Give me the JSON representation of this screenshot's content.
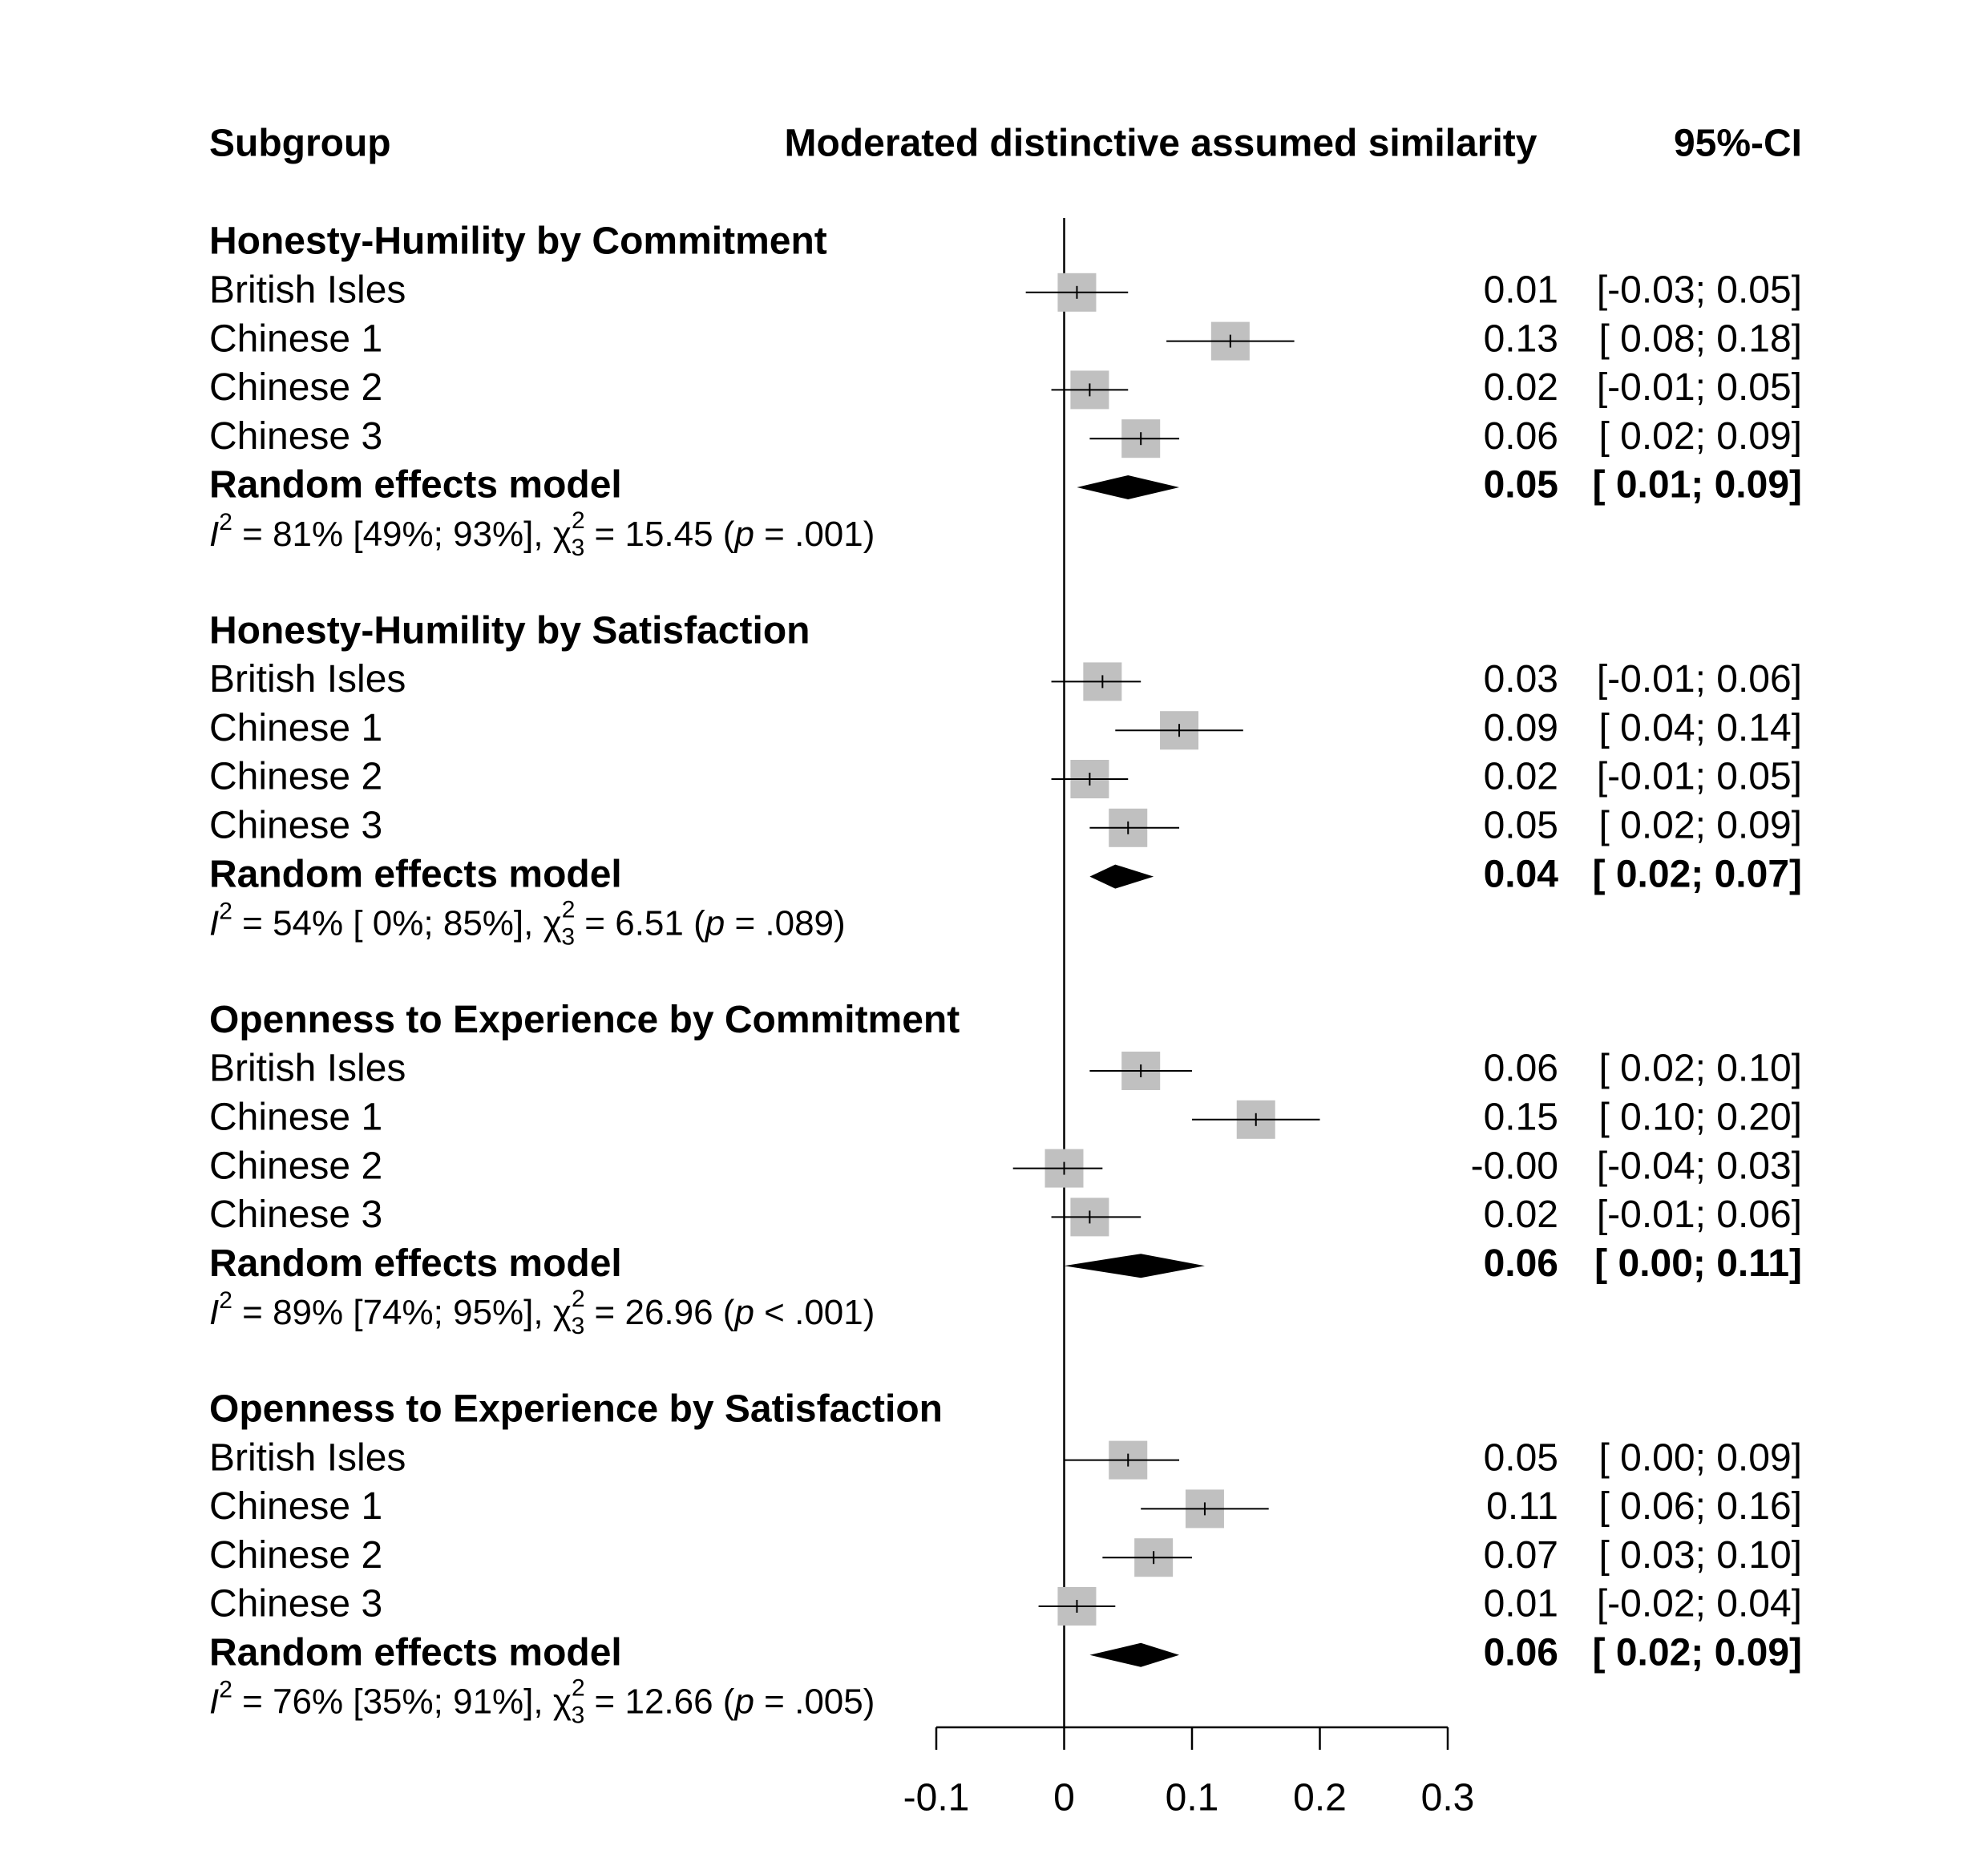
{
  "chart_data": {
    "type": "forest",
    "headers": {
      "subgroup": "Subgroup",
      "effect": "Moderated distinctive assumed similarity",
      "ci": "95%-CI"
    },
    "xlim": [
      -0.1,
      0.3
    ],
    "xticks": [
      -0.1,
      0,
      0.1,
      0.2,
      0.3
    ],
    "zero_line": true,
    "square_color": "#c0c0c0",
    "diamond_color": "#000000",
    "groups": [
      {
        "title": "Honesty-Humility by Commitment",
        "studies": [
          {
            "name": "British Isles",
            "estimate": 0.01,
            "ci": [
              -0.03,
              0.05
            ],
            "ci_label": "[-0.03; 0.05]"
          },
          {
            "name": "Chinese 1",
            "estimate": 0.13,
            "ci": [
              0.08,
              0.18
            ],
            "ci_label": "[ 0.08; 0.18]"
          },
          {
            "name": "Chinese 2",
            "estimate": 0.02,
            "ci": [
              -0.01,
              0.05
            ],
            "ci_label": "[-0.01; 0.05]"
          },
          {
            "name": "Chinese 3",
            "estimate": 0.06,
            "ci": [
              0.02,
              0.09
            ],
            "ci_label": "[ 0.02; 0.09]"
          }
        ],
        "pooled": {
          "name": "Random effects model",
          "estimate": 0.05,
          "ci": [
            0.01,
            0.09
          ],
          "ci_label": "[ 0.01; 0.09]"
        },
        "heterogeneity": {
          "i": "I",
          "i_sup": "2",
          "i_text": " = 81% [49%; 93%], ",
          "chi": "χ",
          "chi_sup": "2",
          "chi_sub": "3",
          "chi_text": " = 15.45 (",
          "p": "p",
          "p_text": " = .001)"
        }
      },
      {
        "title": "Honesty-Humility by Satisfaction",
        "studies": [
          {
            "name": "British Isles",
            "estimate": 0.03,
            "ci": [
              -0.01,
              0.06
            ],
            "ci_label": "[-0.01; 0.06]"
          },
          {
            "name": "Chinese 1",
            "estimate": 0.09,
            "ci": [
              0.04,
              0.14
            ],
            "ci_label": "[ 0.04; 0.14]"
          },
          {
            "name": "Chinese 2",
            "estimate": 0.02,
            "ci": [
              -0.01,
              0.05
            ],
            "ci_label": "[-0.01; 0.05]"
          },
          {
            "name": "Chinese 3",
            "estimate": 0.05,
            "ci": [
              0.02,
              0.09
            ],
            "ci_label": "[ 0.02; 0.09]"
          }
        ],
        "pooled": {
          "name": "Random effects model",
          "estimate": 0.04,
          "ci": [
            0.02,
            0.07
          ],
          "ci_label": "[ 0.02; 0.07]"
        },
        "heterogeneity": {
          "i": "I",
          "i_sup": "2",
          "i_text": " = 54% [ 0%; 85%], ",
          "chi": "χ",
          "chi_sup": "2",
          "chi_sub": "3",
          "chi_text": " = 6.51 (",
          "p": "p",
          "p_text": " = .089)"
        }
      },
      {
        "title": "Openness to Experience by Commitment",
        "studies": [
          {
            "name": "British Isles",
            "estimate": 0.06,
            "ci": [
              0.02,
              0.1
            ],
            "ci_label": "[ 0.02; 0.10]"
          },
          {
            "name": "Chinese 1",
            "estimate": 0.15,
            "ci": [
              0.1,
              0.2
            ],
            "ci_label": "[ 0.10; 0.20]"
          },
          {
            "name": "Chinese 2",
            "estimate": 0,
            "estimate_label": "-0.00",
            "ci": [
              -0.04,
              0.03
            ],
            "ci_label": "[-0.04; 0.03]"
          },
          {
            "name": "Chinese 3",
            "estimate": 0.02,
            "ci": [
              -0.01,
              0.06
            ],
            "ci_label": "[-0.01; 0.06]"
          }
        ],
        "pooled": {
          "name": "Random effects model",
          "estimate": 0.06,
          "ci": [
            0,
            0.11
          ],
          "ci_label": "[ 0.00; 0.11]"
        },
        "heterogeneity": {
          "i": "I",
          "i_sup": "2",
          "i_text": " = 89% [74%; 95%], ",
          "chi": "χ",
          "chi_sup": "2",
          "chi_sub": "3",
          "chi_text": " = 26.96 (",
          "p": "p",
          "p_text": " < .001)"
        }
      },
      {
        "title": "Openness to Experience by Satisfaction",
        "studies": [
          {
            "name": "British Isles",
            "estimate": 0.05,
            "ci": [
              0,
              0.09
            ],
            "ci_label": "[ 0.00; 0.09]"
          },
          {
            "name": "Chinese 1",
            "estimate": 0.11,
            "ci": [
              0.06,
              0.16
            ],
            "ci_label": "[ 0.06; 0.16]"
          },
          {
            "name": "Chinese 2",
            "estimate": 0.07,
            "ci": [
              0.03,
              0.1
            ],
            "ci_label": "[ 0.03; 0.10]"
          },
          {
            "name": "Chinese 3",
            "estimate": 0.01,
            "ci": [
              -0.02,
              0.04
            ],
            "ci_label": "[-0.02; 0.04]"
          }
        ],
        "pooled": {
          "name": "Random effects model",
          "estimate": 0.06,
          "ci": [
            0.02,
            0.09
          ],
          "ci_label": "[ 0.02; 0.09]"
        },
        "heterogeneity": {
          "i": "I",
          "i_sup": "2",
          "i_text": " = 76% [35%; 91%], ",
          "chi": "χ",
          "chi_sup": "2",
          "chi_sub": "3",
          "chi_text": " = 12.66 (",
          "p": "p",
          "p_text": " = .005)"
        }
      }
    ]
  }
}
